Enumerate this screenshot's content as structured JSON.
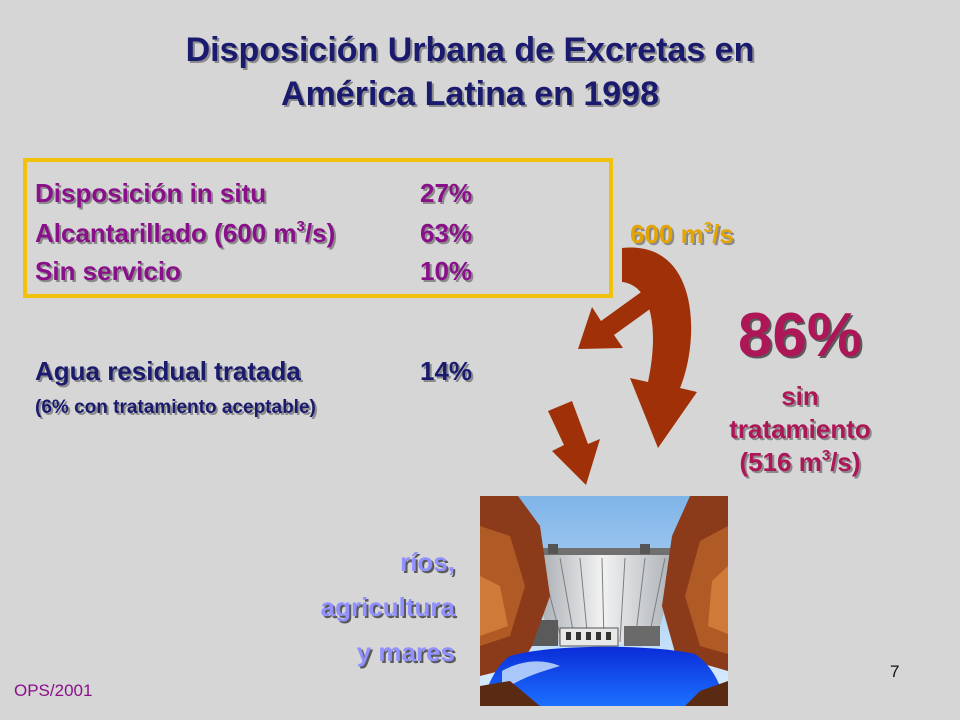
{
  "title": {
    "line1": "Disposición Urbana de Excretas en",
    "line2": "América Latina en 1998"
  },
  "stats": [
    {
      "label": "Disposición in situ",
      "value": "27%"
    },
    {
      "label_main": "Alcantarillado (600 m",
      "label_sup": "3",
      "label_end": "/s)",
      "value": "63%"
    },
    {
      "label": "Sin servicio",
      "value": "10%"
    }
  ],
  "treated": {
    "label": "Agua residual tratada",
    "value": "14%",
    "note": "(6% con tratamiento aceptable)"
  },
  "flow": {
    "main": "600 m",
    "sup": "3",
    "end": "/s"
  },
  "untreated": {
    "percent": "86%",
    "line1": "sin",
    "line2": "tratamiento",
    "line3_main": "(516  m",
    "line3_sup": "3",
    "line3_end": "/s)"
  },
  "destinations": [
    "ríos,",
    "agricultura",
    "y mares"
  ],
  "footer": {
    "source": "OPS/2001",
    "page": "7"
  },
  "colors": {
    "background": "#d6d6d6",
    "title": "#1a1a6e",
    "stats_text": "#8a0f8a",
    "box_border": "#f2c20a",
    "flow": "#e6a400",
    "untreated": "#ad1657",
    "destinations": "#9090ff",
    "arrow": "#a03008"
  },
  "icons": [
    "curved-arrow-down-icon",
    "arrow-down-left-icon",
    "arrow-down-icon",
    "dam-icon"
  ]
}
